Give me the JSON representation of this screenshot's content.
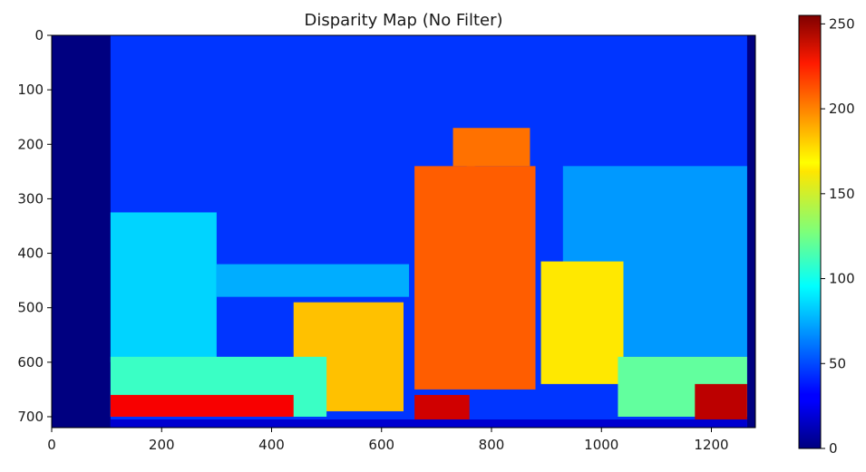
{
  "chart_data": {
    "type": "heatmap",
    "title": "Disparity Map (No Filter)",
    "xlabel": "",
    "ylabel": "",
    "xlim": [
      0,
      1280
    ],
    "ylim": [
      720,
      0
    ],
    "x_ticks": [
      0,
      200,
      400,
      600,
      800,
      1000,
      1200
    ],
    "y_ticks": [
      0,
      100,
      200,
      300,
      400,
      500,
      600,
      700
    ],
    "colormap": "jet",
    "colorbar": {
      "range": [
        0,
        255
      ],
      "ticks": [
        0,
        50,
        100,
        150,
        200,
        250
      ]
    },
    "grid": false,
    "background_value": 45,
    "regions": [
      {
        "name": "left-border",
        "x": [
          0,
          107
        ],
        "y": [
          0,
          720
        ],
        "value": 0
      },
      {
        "name": "right-border",
        "x": [
          1265,
          1280
        ],
        "y": [
          0,
          720
        ],
        "value": 0
      },
      {
        "name": "left-shelf",
        "x": [
          107,
          300
        ],
        "y": [
          325,
          600
        ],
        "value": 85
      },
      {
        "name": "right-shelf",
        "x": [
          930,
          1265
        ],
        "y": [
          240,
          590
        ],
        "value": 70
      },
      {
        "name": "mid-bar",
        "x": [
          300,
          650
        ],
        "y": [
          420,
          480
        ],
        "value": 75
      },
      {
        "name": "robot-base",
        "x": [
          660,
          880
        ],
        "y": [
          240,
          650
        ],
        "value": 200
      },
      {
        "name": "robot-head",
        "x": [
          730,
          870
        ],
        "y": [
          170,
          240
        ],
        "value": 195
      },
      {
        "name": "robot-mast",
        "x": [
          755,
          770
        ],
        "y": [
          175,
          240
        ],
        "value": 195
      },
      {
        "name": "left-box",
        "x": [
          440,
          640
        ],
        "y": [
          490,
          690
        ],
        "value": 175
      },
      {
        "name": "right-box",
        "x": [
          890,
          1040
        ],
        "y": [
          415,
          640
        ],
        "value": 165
      },
      {
        "name": "floor-band-left",
        "x": [
          107,
          500
        ],
        "y": [
          590,
          700
        ],
        "value": 110
      },
      {
        "name": "floor-band-right",
        "x": [
          1030,
          1265
        ],
        "y": [
          590,
          700
        ],
        "value": 120
      },
      {
        "name": "floor-near-left",
        "x": [
          107,
          440
        ],
        "y": [
          660,
          700
        ],
        "value": 225
      },
      {
        "name": "floor-near-right",
        "x": [
          1170,
          1265
        ],
        "y": [
          640,
          710
        ],
        "value": 240
      },
      {
        "name": "robot-shadow",
        "x": [
          660,
          760
        ],
        "y": [
          660,
          720
        ],
        "value": 235
      },
      {
        "name": "bottom-strip",
        "x": [
          107,
          1265
        ],
        "y": [
          705,
          720
        ],
        "value": 20
      }
    ]
  }
}
